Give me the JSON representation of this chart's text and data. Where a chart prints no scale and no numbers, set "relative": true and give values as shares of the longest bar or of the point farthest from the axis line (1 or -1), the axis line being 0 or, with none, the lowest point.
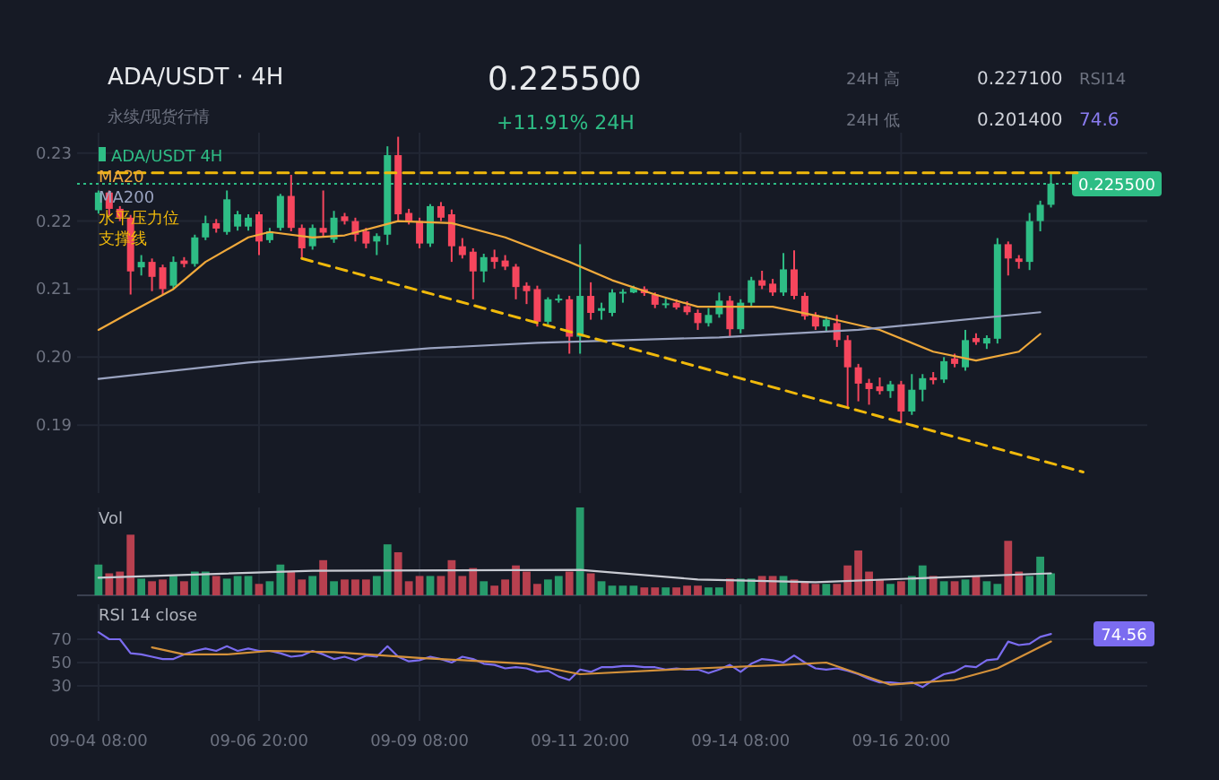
{
  "chart_data": [
    {
      "type": "candlestick",
      "title": "ADA/USDT · 4H",
      "subtitle": "永续/现货行情",
      "annotations": [
        "0.225500",
        "+11.91% 24H",
        "24H 高",
        "0.227100",
        "24H 低",
        "0.201400",
        "RSI14",
        "74.6"
      ],
      "categories": [
        null,
        null,
        null,
        null,
        null,
        null,
        null,
        null,
        null,
        null,
        null,
        null,
        null,
        null,
        null,
        null,
        null,
        null,
        null,
        null,
        null,
        null,
        null,
        null,
        null,
        null,
        null,
        null,
        null,
        null,
        null,
        null,
        null,
        null,
        null,
        null,
        null,
        null,
        null,
        null,
        null,
        null,
        null,
        null,
        null,
        null,
        null,
        null,
        null,
        null,
        null,
        null,
        null,
        null,
        null,
        null,
        null,
        null,
        null,
        null,
        null,
        null,
        null,
        null,
        null,
        null,
        null,
        null,
        null,
        null,
        null,
        null,
        null,
        null,
        null,
        null,
        null,
        null,
        null,
        null,
        null,
        null,
        null,
        null,
        null,
        null,
        null,
        null,
        null,
        null,
        null,
        null,
        null,
        null
      ],
      "ylim": [
        0.18,
        0.233
      ],
      "yticks": [
        {
          "value": 0.19,
          "label": "0.19"
        },
        {
          "value": 0.2,
          "label": "0.20"
        },
        {
          "value": 0.21,
          "label": "0.21"
        },
        {
          "value": 0.22,
          "label": "0.22"
        },
        {
          "value": 0.23,
          "label": "0.23"
        }
      ],
      "tick_labels": "y",
      "grid": true,
      "legend": "top left",
      "ref_lines": [
        {
          "axis": "y",
          "value": 0.2255,
          "label": "0.225500",
          "color": "#2ebd85",
          "line_style": "dotted"
        }
      ],
      "series": [
        {
          "name": "ADA/USDT 4H",
          "ohlc": [
            [
              0.2216,
              0.2245,
              0.2211,
              0.2242
            ],
            [
              0.2242,
              0.2245,
              0.2208,
              0.2218
            ],
            [
              0.2218,
              0.2222,
              0.22,
              0.2205
            ],
            [
              0.2205,
              0.2209,
              0.2092,
              0.2126
            ],
            [
              0.2132,
              0.215,
              0.212,
              0.214
            ],
            [
              0.214,
              0.2145,
              0.2097,
              0.2118
            ],
            [
              0.2132,
              0.2136,
              0.2092,
              0.21
            ],
            [
              0.2105,
              0.2148,
              0.21,
              0.214
            ],
            [
              0.2142,
              0.2147,
              0.2132,
              0.2137
            ],
            [
              0.2137,
              0.218,
              0.2133,
              0.2176
            ],
            [
              0.2176,
              0.2208,
              0.2172,
              0.2197
            ],
            [
              0.2197,
              0.2203,
              0.2183,
              0.2189
            ],
            [
              0.2184,
              0.2245,
              0.218,
              0.2232
            ],
            [
              0.2192,
              0.2215,
              0.2186,
              0.221
            ],
            [
              0.2192,
              0.221,
              0.2186,
              0.2205
            ],
            [
              0.221,
              0.2214,
              0.215,
              0.217
            ],
            [
              0.2172,
              0.219,
              0.2168,
              0.2185
            ],
            [
              0.219,
              0.224,
              0.2186,
              0.2237
            ],
            [
              0.2237,
              0.2268,
              0.2185,
              0.219
            ],
            [
              0.219,
              0.2195,
              0.2145,
              0.216
            ],
            [
              0.2163,
              0.2195,
              0.2158,
              0.219
            ],
            [
              0.219,
              0.2245,
              0.2178,
              0.2183
            ],
            [
              0.2173,
              0.2215,
              0.2168,
              0.2205
            ],
            [
              0.2207,
              0.2212,
              0.2195,
              0.22
            ],
            [
              0.22,
              0.2205,
              0.217,
              0.218
            ],
            [
              0.2185,
              0.219,
              0.216,
              0.2167
            ],
            [
              0.217,
              0.2182,
              0.215,
              0.2178
            ],
            [
              0.218,
              0.231,
              0.2165,
              0.2297
            ],
            [
              0.2297,
              0.2324,
              0.22,
              0.221
            ],
            [
              0.2212,
              0.2218,
              0.2195,
              0.22
            ],
            [
              0.22,
              0.2205,
              0.216,
              0.2167
            ],
            [
              0.2167,
              0.2225,
              0.2162,
              0.2222
            ],
            [
              0.2222,
              0.2228,
              0.22,
              0.2205
            ],
            [
              0.221,
              0.2217,
              0.214,
              0.2163
            ],
            [
              0.2163,
              0.2175,
              0.2145,
              0.215
            ],
            [
              0.2155,
              0.216,
              0.2085,
              0.2126
            ],
            [
              0.2126,
              0.2152,
              0.211,
              0.2147
            ],
            [
              0.2147,
              0.2158,
              0.213,
              0.214
            ],
            [
              0.2142,
              0.215,
              0.2128,
              0.2133
            ],
            [
              0.2133,
              0.2137,
              0.2085,
              0.2103
            ],
            [
              0.2105,
              0.211,
              0.2078,
              0.2097
            ],
            [
              0.21,
              0.2105,
              0.2045,
              0.2052
            ],
            [
              0.2052,
              0.2088,
              0.2048,
              0.2085
            ],
            [
              0.2084,
              0.2092,
              0.208,
              0.2086
            ],
            [
              0.2085,
              0.209,
              0.2005,
              0.203
            ],
            [
              0.203,
              0.2166,
              0.2005,
              0.209
            ],
            [
              0.209,
              0.211,
              0.2055,
              0.2065
            ],
            [
              0.2068,
              0.208,
              0.2055,
              0.2072
            ],
            [
              0.2065,
              0.21,
              0.206,
              0.2095
            ],
            [
              0.2094,
              0.21,
              0.208,
              0.2096
            ],
            [
              0.2095,
              0.2105,
              0.2094,
              0.2102
            ],
            [
              0.21,
              0.2104,
              0.209,
              0.2094
            ],
            [
              0.2092,
              0.2095,
              0.2072,
              0.2077
            ],
            [
              0.2078,
              0.2086,
              0.2072,
              0.2079
            ],
            [
              0.208,
              0.2085,
              0.207,
              0.2073
            ],
            [
              0.2075,
              0.2082,
              0.2062,
              0.2066
            ],
            [
              0.2065,
              0.207,
              0.204,
              0.205
            ],
            [
              0.205,
              0.2072,
              0.2045,
              0.2062
            ],
            [
              0.2063,
              0.2095,
              0.2058,
              0.2083
            ],
            [
              0.2083,
              0.209,
              0.203,
              0.2041
            ],
            [
              0.2041,
              0.2085,
              0.2035,
              0.208
            ],
            [
              0.208,
              0.2118,
              0.2075,
              0.2113
            ],
            [
              0.2113,
              0.2127,
              0.21,
              0.2105
            ],
            [
              0.2108,
              0.2115,
              0.209,
              0.2095
            ],
            [
              0.2095,
              0.2153,
              0.209,
              0.2129
            ],
            [
              0.2129,
              0.2157,
              0.2085,
              0.209
            ],
            [
              0.209,
              0.2095,
              0.2055,
              0.206
            ],
            [
              0.2062,
              0.2066,
              0.204,
              0.2045
            ],
            [
              0.2045,
              0.206,
              0.2038,
              0.2055
            ],
            [
              0.205,
              0.2062,
              0.2015,
              0.2025
            ],
            [
              0.2025,
              0.2032,
              0.1927,
              0.1985
            ],
            [
              0.1985,
              0.199,
              0.1935,
              0.1961
            ],
            [
              0.1962,
              0.1968,
              0.193,
              0.1953
            ],
            [
              0.1957,
              0.197,
              0.1945,
              0.195
            ],
            [
              0.195,
              0.1965,
              0.194,
              0.196
            ],
            [
              0.196,
              0.1965,
              0.1903,
              0.192
            ],
            [
              0.192,
              0.1975,
              0.1915,
              0.1952
            ],
            [
              0.1952,
              0.1975,
              0.1935,
              0.1969
            ],
            [
              0.197,
              0.1978,
              0.196,
              0.1966
            ],
            [
              0.1967,
              0.2,
              0.1962,
              0.1994
            ],
            [
              0.1998,
              0.2005,
              0.1985,
              0.199
            ],
            [
              0.1985,
              0.204,
              0.198,
              0.2025
            ],
            [
              0.2028,
              0.2035,
              0.2018,
              0.2022
            ],
            [
              0.202,
              0.2032,
              0.2012,
              0.2028
            ],
            [
              0.2027,
              0.2175,
              0.202,
              0.2166
            ],
            [
              0.2166,
              0.217,
              0.212,
              0.2145
            ],
            [
              0.2145,
              0.215,
              0.213,
              0.214
            ],
            [
              0.214,
              0.2212,
              0.2128,
              0.22
            ],
            [
              0.22,
              0.223,
              0.2185,
              0.2224
            ],
            [
              0.2224,
              0.2271,
              0.222,
              0.2255
            ],
            null,
            null,
            null,
            null
          ],
          "colors": [
            "#2ebd85",
            "#f6465d",
            "#f6465d",
            "#f6465d",
            "#2ebd85",
            "#f6465d",
            "#f6465d",
            "#2ebd85",
            "#f6465d",
            "#2ebd85",
            "#2ebd85",
            "#f6465d",
            "#2ebd85",
            "#2ebd85",
            "#2ebd85",
            "#f6465d",
            "#2ebd85",
            "#2ebd85",
            "#f6465d",
            "#f6465d",
            "#2ebd85",
            "#f6465d",
            "#2ebd85",
            "#f6465d",
            "#f6465d",
            "#f6465d",
            "#2ebd85",
            "#2ebd85",
            "#f6465d",
            "#f6465d",
            "#f6465d",
            "#2ebd85",
            "#f6465d",
            "#f6465d",
            "#f6465d",
            "#f6465d",
            "#2ebd85",
            "#f6465d",
            "#f6465d",
            "#f6465d",
            "#f6465d",
            "#f6465d",
            "#2ebd85",
            "#2ebd85",
            "#f6465d",
            "#2ebd85",
            "#f6465d",
            "#2ebd85",
            "#2ebd85",
            "#2ebd85",
            "#2ebd85",
            "#f6465d",
            "#f6465d",
            "#2ebd85",
            "#f6465d",
            "#f6465d",
            "#f6465d",
            "#2ebd85",
            "#2ebd85",
            "#f6465d",
            "#2ebd85",
            "#2ebd85",
            "#f6465d",
            "#f6465d",
            "#2ebd85",
            "#f6465d",
            "#f6465d",
            "#f6465d",
            "#2ebd85",
            "#f6465d",
            "#f6465d",
            "#f6465d",
            "#f6465d",
            "#f6465d",
            "#2ebd85",
            "#f6465d",
            "#2ebd85",
            "#2ebd85",
            "#f6465d",
            "#2ebd85",
            "#f6465d",
            "#2ebd85",
            "#f6465d",
            "#2ebd85",
            "#2ebd85",
            "#f6465d",
            "#f6465d",
            "#2ebd85",
            "#2ebd85",
            "#2ebd85",
            null,
            null,
            null,
            null
          ]
        },
        {
          "type": "line",
          "name": "MA20",
          "color": "#f0a93b",
          "values": [
            0.204,
            null,
            null,
            0.2066,
            null,
            null,
            null,
            0.21,
            null,
            null,
            0.214,
            null,
            null,
            null,
            0.2176,
            null,
            0.2184,
            null,
            null,
            null,
            0.2176,
            null,
            null,
            0.2179,
            null,
            null,
            null,
            null,
            0.22,
            null,
            null,
            null,
            null,
            0.2197,
            null,
            null,
            null,
            null,
            0.2176,
            null,
            null,
            null,
            null,
            null,
            0.214,
            null,
            null,
            null,
            0.2113,
            null,
            null,
            null,
            0.2092,
            null,
            null,
            null,
            0.2074,
            null,
            null,
            null,
            null,
            null,
            null,
            0.2074,
            null,
            null,
            null,
            null,
            0.2058,
            null,
            null,
            null,
            null,
            0.204,
            null,
            null,
            null,
            null,
            0.2008,
            null,
            null,
            null,
            0.1995,
            null,
            null,
            null,
            0.2008,
            null,
            0.2034,
            null,
            null,
            null,
            null,
            null
          ]
        },
        {
          "type": "line",
          "name": "MA200",
          "color": "#9aa3c0",
          "values": [
            0.1968,
            null,
            null,
            null,
            null,
            null,
            null,
            null,
            null,
            null,
            null,
            null,
            null,
            null,
            0.1992,
            null,
            null,
            null,
            null,
            null,
            null,
            null,
            null,
            null,
            null,
            null,
            null,
            null,
            null,
            null,
            null,
            0.2013,
            null,
            null,
            null,
            null,
            null,
            null,
            null,
            null,
            null,
            0.2021,
            null,
            null,
            null,
            null,
            null,
            null,
            null,
            null,
            null,
            null,
            null,
            null,
            null,
            null,
            null,
            null,
            0.2029,
            null,
            null,
            null,
            null,
            null,
            null,
            null,
            null,
            null,
            null,
            null,
            null,
            0.204,
            null,
            null,
            null,
            null,
            null,
            null,
            null,
            null,
            null,
            null,
            null,
            null,
            null,
            null,
            null,
            null,
            0.2066,
            null,
            null,
            null,
            null,
            null
          ]
        },
        {
          "type": "line",
          "name": "水平压力位",
          "color": "#f0b90b",
          "line_style": "dashed",
          "values": [
            0.2271,
            null,
            null,
            null,
            null,
            null,
            null,
            null,
            null,
            null,
            null,
            null,
            null,
            null,
            null,
            null,
            null,
            null,
            null,
            null,
            null,
            null,
            null,
            null,
            null,
            null,
            null,
            null,
            null,
            null,
            null,
            null,
            null,
            null,
            null,
            null,
            null,
            null,
            null,
            null,
            null,
            null,
            null,
            null,
            null,
            null,
            null,
            null,
            null,
            null,
            null,
            null,
            null,
            null,
            null,
            null,
            null,
            null,
            null,
            null,
            null,
            null,
            null,
            null,
            null,
            null,
            null,
            null,
            null,
            null,
            null,
            null,
            null,
            null,
            null,
            null,
            null,
            null,
            null,
            null,
            null,
            null,
            null,
            null,
            null,
            null,
            null,
            null,
            null,
            null,
            null,
            null,
            0.2271,
            null
          ]
        },
        {
          "type": "line",
          "name": "支撑线",
          "color": "#f0b90b",
          "line_style": "dashed",
          "values": [
            null,
            null,
            null,
            null,
            null,
            null,
            null,
            null,
            null,
            null,
            null,
            null,
            null,
            null,
            null,
            null,
            null,
            null,
            null,
            0.2145,
            null,
            null,
            null,
            null,
            null,
            null,
            null,
            null,
            null,
            null,
            null,
            null,
            null,
            null,
            null,
            null,
            null,
            null,
            null,
            null,
            null,
            null,
            null,
            null,
            null,
            null,
            null,
            null,
            null,
            null,
            null,
            null,
            null,
            null,
            null,
            null,
            null,
            null,
            null,
            null,
            null,
            null,
            null,
            null,
            null,
            null,
            null,
            null,
            null,
            null,
            null,
            null,
            null,
            null,
            null,
            null,
            null,
            null,
            null,
            null,
            null,
            null,
            null,
            null,
            null,
            null,
            null,
            null,
            null,
            null,
            null,
            null,
            0.1831,
            null
          ]
        }
      ]
    },
    {
      "type": "bar",
      "title": "Vol",
      "relative": true,
      "tick_labels": "y",
      "grid": "x",
      "categories": [
        null,
        null,
        null,
        null,
        null,
        null,
        null,
        null,
        null,
        null,
        null,
        null,
        null,
        null,
        null,
        null,
        null,
        null,
        null,
        null,
        null,
        null,
        null,
        null,
        null,
        null,
        null,
        null,
        null,
        null,
        null,
        null,
        null,
        null,
        null,
        null,
        null,
        null,
        null,
        null,
        null,
        null,
        null,
        null,
        null,
        null,
        null,
        null,
        null,
        null,
        null,
        null,
        null,
        null,
        null,
        null,
        null,
        null,
        null,
        null,
        null,
        null,
        null,
        null,
        null,
        null,
        null,
        null,
        null,
        null,
        null,
        null,
        null,
        null,
        null,
        null,
        null,
        null,
        null,
        null,
        null,
        null,
        null,
        null,
        null,
        null,
        null,
        null,
        null,
        null,
        null,
        null,
        null,
        null
      ],
      "series": [
        {
          "values": [
            0.35,
            0.25,
            0.27,
            0.69,
            0.19,
            0.16,
            0.18,
            0.22,
            0.16,
            0.27,
            0.27,
            0.22,
            0.19,
            0.22,
            0.22,
            0.13,
            0.16,
            0.35,
            0.27,
            0.18,
            0.22,
            0.4,
            0.16,
            0.18,
            0.18,
            0.18,
            0.22,
            0.58,
            0.49,
            0.16,
            0.22,
            0.22,
            0.22,
            0.4,
            0.22,
            0.31,
            0.16,
            0.11,
            0.18,
            0.34,
            0.27,
            0.13,
            0.18,
            0.22,
            0.27,
            1,
            0.25,
            0.16,
            0.11,
            0.11,
            0.11,
            0.09,
            0.09,
            0.09,
            0.09,
            0.11,
            0.11,
            0.09,
            0.09,
            0.19,
            0.19,
            0.19,
            0.22,
            0.22,
            0.22,
            0.18,
            0.16,
            0.13,
            0.13,
            0.13,
            0.34,
            0.51,
            0.27,
            0.18,
            0.13,
            0.16,
            0.22,
            0.34,
            0.22,
            0.16,
            0.16,
            0.18,
            0.22,
            0.16,
            0.13,
            0.62,
            0.27,
            0.22,
            0.44,
            0.25,
            null,
            null,
            null,
            null
          ],
          "colors": [
            "#279b6b",
            "#b8404f",
            "#b8404f",
            "#b8404f",
            "#279b6b",
            "#b8404f",
            "#b8404f",
            "#279b6b",
            "#b8404f",
            "#279b6b",
            "#279b6b",
            "#b8404f",
            "#279b6b",
            "#279b6b",
            "#279b6b",
            "#b8404f",
            "#279b6b",
            "#279b6b",
            "#b8404f",
            "#b8404f",
            "#279b6b",
            "#b8404f",
            "#279b6b",
            "#b8404f",
            "#b8404f",
            "#b8404f",
            "#279b6b",
            "#279b6b",
            "#b8404f",
            "#b8404f",
            "#b8404f",
            "#279b6b",
            "#b8404f",
            "#b8404f",
            "#b8404f",
            "#b8404f",
            "#279b6b",
            "#b8404f",
            "#b8404f",
            "#b8404f",
            "#b8404f",
            "#b8404f",
            "#279b6b",
            "#279b6b",
            "#b8404f",
            "#279b6b",
            "#b8404f",
            "#279b6b",
            "#279b6b",
            "#279b6b",
            "#279b6b",
            "#b8404f",
            "#b8404f",
            "#279b6b",
            "#b8404f",
            "#b8404f",
            "#b8404f",
            "#279b6b",
            "#279b6b",
            "#b8404f",
            "#279b6b",
            "#279b6b",
            "#b8404f",
            "#b8404f",
            "#279b6b",
            "#b8404f",
            "#b8404f",
            "#b8404f",
            "#279b6b",
            "#b8404f",
            "#b8404f",
            "#b8404f",
            "#b8404f",
            "#b8404f",
            "#279b6b",
            "#b8404f",
            "#279b6b",
            "#279b6b",
            "#b8404f",
            "#279b6b",
            "#b8404f",
            "#279b6b",
            "#b8404f",
            "#279b6b",
            "#279b6b",
            "#b8404f",
            "#b8404f",
            "#279b6b",
            "#279b6b",
            "#279b6b",
            null,
            null,
            null,
            null
          ]
        },
        {
          "type": "line",
          "color": "#c8cad2",
          "values": [
            0.2,
            null,
            null,
            null,
            null,
            null,
            null,
            null,
            null,
            null,
            null,
            null,
            null,
            null,
            null,
            null,
            null,
            null,
            null,
            null,
            0.28,
            null,
            null,
            null,
            null,
            null,
            null,
            null,
            null,
            null,
            null,
            null,
            null,
            null,
            null,
            null,
            null,
            null,
            null,
            null,
            null,
            null,
            null,
            null,
            null,
            0.29,
            null,
            null,
            null,
            null,
            null,
            null,
            null,
            null,
            null,
            null,
            0.18,
            null,
            null,
            null,
            null,
            null,
            null,
            null,
            null,
            null,
            null,
            0.15,
            null,
            null,
            null,
            null,
            null,
            null,
            null,
            null,
            null,
            null,
            0.2,
            null,
            null,
            null,
            null,
            null,
            null,
            null,
            null,
            null,
            null,
            0.25,
            null,
            null,
            null,
            null
          ]
        }
      ]
    },
    {
      "type": "line",
      "title": "RSI 14 close",
      "ylim": [
        0,
        100
      ],
      "yticks": [
        30,
        50,
        70
      ],
      "grid": true,
      "categories": [
        "09-04 08:00",
        null,
        null,
        null,
        null,
        null,
        null,
        null,
        null,
        null,
        null,
        null,
        null,
        null,
        null,
        "09-06 20:00",
        null,
        null,
        null,
        null,
        null,
        null,
        null,
        null,
        null,
        null,
        null,
        null,
        null,
        null,
        "09-09 08:00",
        null,
        null,
        null,
        null,
        null,
        null,
        null,
        null,
        null,
        null,
        null,
        null,
        null,
        null,
        "09-11 20:00",
        null,
        null,
        null,
        null,
        null,
        null,
        null,
        null,
        null,
        null,
        null,
        null,
        null,
        null,
        "09-14 08:00",
        null,
        null,
        null,
        null,
        null,
        null,
        null,
        null,
        null,
        null,
        null,
        null,
        null,
        null,
        "09-16 20:00",
        null,
        null,
        null,
        null,
        null,
        null,
        null,
        null,
        null,
        null,
        null,
        null,
        null,
        null,
        null,
        null,
        null,
        null
      ],
      "annotations": [
        "74.56"
      ],
      "series": [
        {
          "color": "#7b6cf0",
          "values": [
            76,
            70,
            70,
            58,
            57,
            55,
            53,
            53,
            57,
            60,
            62,
            60,
            64,
            60,
            62,
            60,
            60,
            58,
            55,
            56,
            60,
            57,
            53,
            55,
            52,
            56,
            55,
            64,
            55,
            51,
            52,
            55,
            53,
            50,
            55,
            53,
            49,
            48,
            45,
            46,
            45,
            42,
            43,
            38,
            35,
            44,
            42,
            46,
            46,
            47,
            47,
            46,
            46,
            44,
            45,
            44,
            44,
            41,
            44,
            48,
            42,
            49,
            53,
            52,
            50,
            56,
            50,
            45,
            44,
            45,
            43,
            40,
            36,
            33,
            33,
            32,
            33,
            29,
            35,
            40,
            42,
            47,
            46,
            52,
            53,
            68,
            65,
            66,
            72,
            74.56,
            null,
            null,
            null,
            null
          ]
        },
        {
          "color": "#d4913a",
          "values": [
            null,
            null,
            null,
            null,
            null,
            63,
            null,
            null,
            57,
            null,
            null,
            null,
            57,
            null,
            null,
            null,
            60,
            null,
            null,
            null,
            null,
            null,
            59,
            null,
            null,
            null,
            null,
            null,
            null,
            null,
            54,
            null,
            null,
            null,
            null,
            null,
            null,
            null,
            null,
            null,
            49,
            null,
            null,
            null,
            null,
            40,
            null,
            null,
            null,
            null,
            null,
            null,
            null,
            null,
            null,
            null,
            45,
            null,
            null,
            null,
            null,
            null,
            null,
            null,
            48,
            null,
            null,
            null,
            50,
            null,
            null,
            null,
            null,
            null,
            31,
            null,
            null,
            null,
            null,
            null,
            35,
            null,
            null,
            null,
            45,
            null,
            null,
            null,
            null,
            68,
            null,
            null,
            null,
            null
          ]
        }
      ]
    }
  ]
}
